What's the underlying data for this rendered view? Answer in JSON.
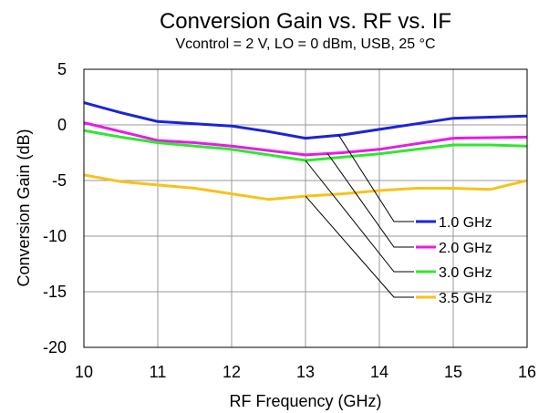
{
  "chart_data": {
    "type": "line",
    "title": "Conversion Gain vs. RF vs. IF",
    "subtitle": "Vcontrol = 2 V, LO = 0 dBm, USB, 25 °C",
    "xlabel": "RF Frequency (GHz)",
    "ylabel": "Conversion Gain (dB)",
    "xlim": [
      10,
      16
    ],
    "ylim": [
      -20,
      5
    ],
    "xticks": [
      10,
      11,
      12,
      13,
      14,
      15,
      16
    ],
    "yticks": [
      5,
      0,
      -5,
      -10,
      -15,
      -20
    ],
    "grid": true,
    "legend_placement": "right-center",
    "x": [
      10,
      10.5,
      11,
      11.5,
      12,
      12.5,
      13,
      13.5,
      14,
      14.5,
      15,
      15.5,
      16
    ],
    "series": [
      {
        "name": "1.0 GHz",
        "color": "#1a24d6",
        "values": [
          2.0,
          1.1,
          0.3,
          0.1,
          -0.1,
          -0.6,
          -1.2,
          -0.9,
          -0.4,
          0.1,
          0.6,
          0.7,
          0.8
        ]
      },
      {
        "name": "2.0 GHz",
        "color": "#e81ae8",
        "values": [
          0.2,
          -0.6,
          -1.4,
          -1.6,
          -1.9,
          -2.3,
          -2.7,
          -2.5,
          -2.2,
          -1.7,
          -1.2,
          -1.15,
          -1.1
        ]
      },
      {
        "name": "3.0 GHz",
        "color": "#2ee82e",
        "values": [
          -0.5,
          -1.1,
          -1.6,
          -1.9,
          -2.2,
          -2.7,
          -3.2,
          -2.9,
          -2.6,
          -2.2,
          -1.8,
          -1.8,
          -1.9
        ]
      },
      {
        "name": "3.5 GHz",
        "color": "#f7c21a",
        "values": [
          -4.5,
          -5.1,
          -5.4,
          -5.7,
          -6.2,
          -6.7,
          -6.4,
          -6.2,
          -5.9,
          -5.7,
          -5.7,
          -5.8,
          -5.0
        ]
      }
    ]
  }
}
